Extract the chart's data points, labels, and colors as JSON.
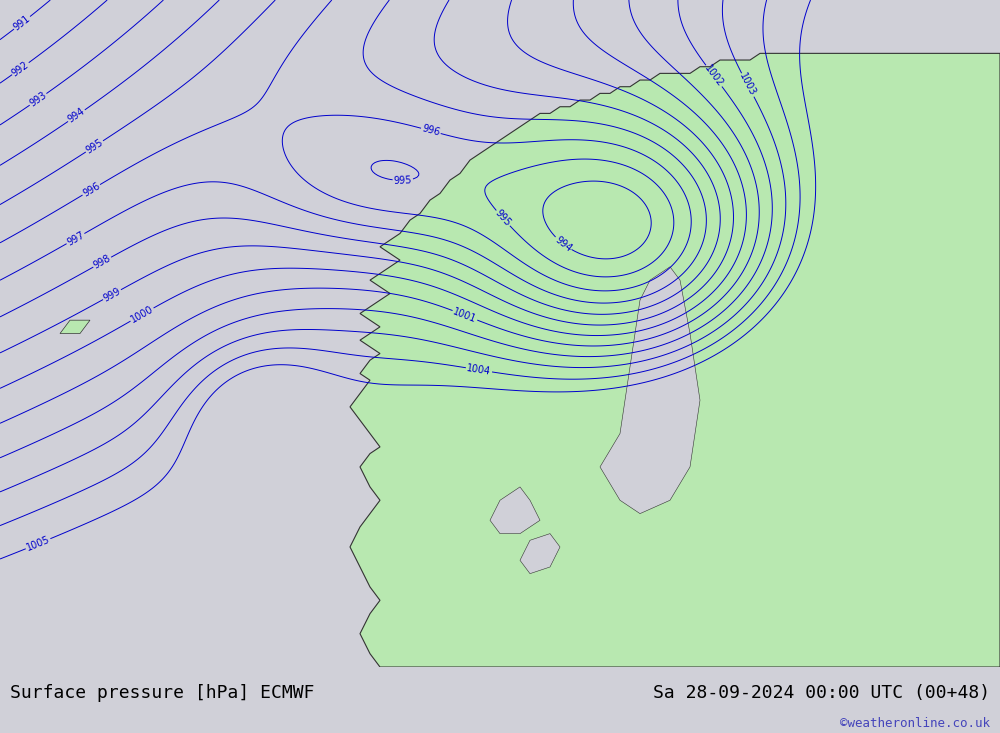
{
  "title_left": "Surface pressure [hPa] ECMWF",
  "title_right": "Sa 28-09-2024 00:00 UTC (00+48)",
  "watermark": "©weatheronline.co.uk",
  "bg_color": "#d0d0d8",
  "land_color": "#b8e8b0",
  "border_color": "#333333",
  "contour_color_blue": "#0000cc",
  "contour_color_red": "#dd0000",
  "contour_color_black": "#111111",
  "font_size_title": 13,
  "font_size_watermark": 9,
  "bottom_bar_color": "#ffffff",
  "watermark_color": "#4444bb"
}
